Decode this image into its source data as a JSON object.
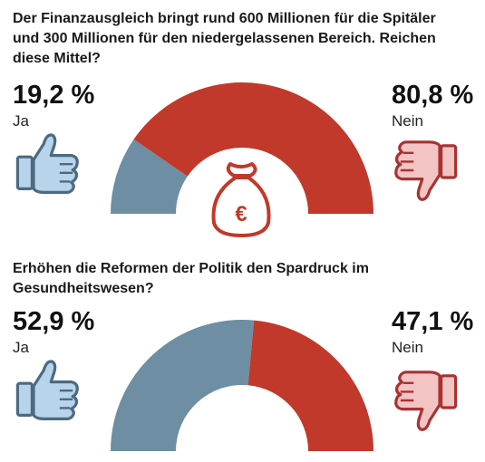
{
  "chart_data": [
    {
      "type": "pie",
      "title": "Der Finanzausgleich bringt rund 600 Millionen für die Spitäler und 300 Millionen für den niedergelassenen Bereich. Reichen diese Mittel?",
      "categories": [
        "Ja",
        "Nein"
      ],
      "values": [
        19.2,
        80.8
      ],
      "value_labels": [
        "19,2 %",
        "80,8 %"
      ],
      "colors": [
        "#6e8ea3",
        "#c0392b"
      ],
      "shape": "semicircle-donut",
      "center_icon": "euro-money-bag-icon"
    },
    {
      "type": "pie",
      "title": "Erhöhen die Reformen der Politik den Spardruck im Gesundheitswesen?",
      "categories": [
        "Ja",
        "Nein"
      ],
      "values": [
        52.9,
        47.1
      ],
      "value_labels": [
        "52,9 %",
        "47,1 %"
      ],
      "colors": [
        "#6e8ea3",
        "#c0392b"
      ],
      "shape": "semicircle-donut"
    }
  ],
  "icons": {
    "yes": "thumbs-up-icon",
    "no": "thumbs-down-icon",
    "yes_color": "#b8d4ea",
    "no_color": "#f2c4c4"
  }
}
